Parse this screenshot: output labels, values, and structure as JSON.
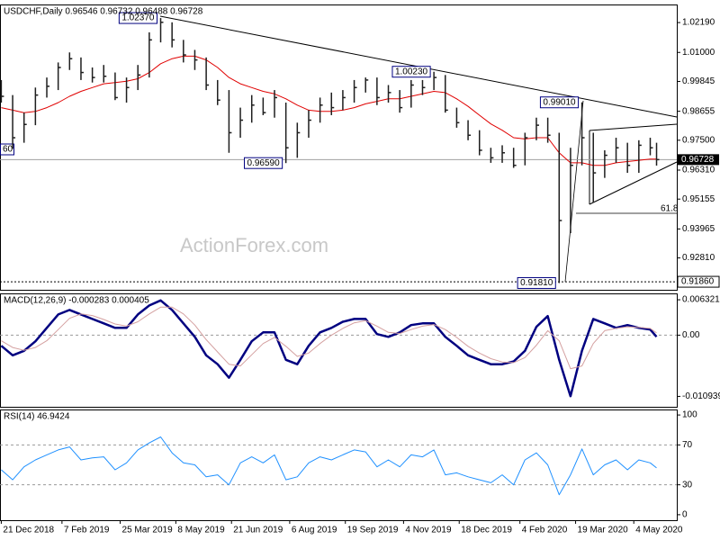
{
  "chart_data": [
    {
      "type": "ohlc",
      "title": "USDCHF,Daily  0.96546 0.96732 0.96488 0.96728",
      "watermark": "ActionForex.com",
      "edge_label": "60",
      "fib_label": "61.8",
      "color": "#1e1e1e",
      "xlim": [
        "2018-12-20",
        "2020-06-07"
      ],
      "x": [
        "2018-12-21",
        "2018-12-30",
        "2019-01-08",
        "2019-01-17",
        "2019-01-26",
        "2019-02-04",
        "2019-02-13",
        "2019-02-22",
        "2019-03-03",
        "2019-03-12",
        "2019-03-21",
        "2019-03-30",
        "2019-04-08",
        "2019-04-17",
        "2019-04-26",
        "2019-05-05",
        "2019-05-14",
        "2019-05-23",
        "2019-06-01",
        "2019-06-10",
        "2019-06-19",
        "2019-06-28",
        "2019-07-07",
        "2019-07-16",
        "2019-07-25",
        "2019-08-03",
        "2019-08-12",
        "2019-08-21",
        "2019-08-30",
        "2019-09-08",
        "2019-09-17",
        "2019-09-26",
        "2019-10-05",
        "2019-10-14",
        "2019-10-23",
        "2019-11-01",
        "2019-11-10",
        "2019-11-19",
        "2019-11-28",
        "2019-12-07",
        "2019-12-16",
        "2019-12-25",
        "2020-01-03",
        "2020-01-12",
        "2020-01-21",
        "2020-01-30",
        "2020-02-08",
        "2020-02-17",
        "2020-02-26",
        "2020-03-06",
        "2020-03-15",
        "2020-03-24",
        "2020-04-02",
        "2020-04-11",
        "2020-04-20",
        "2020-04-29",
        "2020-05-08",
        "2020-05-17",
        "2020-05-22"
      ],
      "high": [
        0.999,
        0.993,
        0.986,
        0.996,
        1.0,
        1.006,
        1.01,
        1.008,
        1.004,
        1.005,
        1.002,
        1.0,
        1.005,
        1.018,
        1.0237,
        1.022,
        1.015,
        1.011,
        1.008,
        0.999,
        0.995,
        0.988,
        0.993,
        0.992,
        0.995,
        0.99,
        0.982,
        0.987,
        0.992,
        0.994,
        0.995,
        0.999,
        1.0,
        1.0,
        0.997,
        0.995,
        0.999,
        0.999,
        1.0023,
        1.001,
        0.988,
        0.983,
        0.979,
        0.972,
        0.973,
        0.972,
        0.978,
        0.984,
        0.984,
        0.978,
        0.972,
        0.9901,
        0.978,
        0.971,
        0.976,
        0.974,
        0.975,
        0.976,
        0.974
      ],
      "low": [
        0.99,
        0.9716,
        0.974,
        0.981,
        0.992,
        0.995,
        1.003,
        0.999,
        0.998,
        0.998,
        0.991,
        0.99,
        0.995,
        1.0,
        1.014,
        1.012,
        1.006,
        1.003,
        0.995,
        0.989,
        0.97,
        0.976,
        0.982,
        0.985,
        0.984,
        0.9659,
        0.968,
        0.976,
        0.982,
        0.985,
        0.987,
        0.99,
        0.994,
        0.989,
        0.99,
        0.986,
        0.988,
        0.993,
        0.995,
        0.986,
        0.98,
        0.975,
        0.969,
        0.966,
        0.966,
        0.964,
        0.965,
        0.975,
        0.974,
        0.9181,
        0.938,
        0.965,
        0.9502,
        0.96,
        0.966,
        0.962,
        0.962,
        0.969,
        0.9649
      ],
      "close": [
        0.9925,
        0.976,
        0.9813,
        0.993,
        0.9965,
        1.004,
        1.0075,
        1.002,
        1.0,
        1.0005,
        0.992,
        0.996,
        1.001,
        1.015,
        1.022,
        1.015,
        1.009,
        1.007,
        0.997,
        0.991,
        0.978,
        0.983,
        0.989,
        0.986,
        0.992,
        0.972,
        0.978,
        0.983,
        0.989,
        0.988,
        0.992,
        0.996,
        0.999,
        0.992,
        0.994,
        0.988,
        0.997,
        0.996,
        1.0,
        0.987,
        0.982,
        0.977,
        0.971,
        0.968,
        0.97,
        0.965,
        0.976,
        0.981,
        0.977,
        0.943,
        0.965,
        0.976,
        0.962,
        0.969,
        0.972,
        0.965,
        0.973,
        0.972,
        0.96728
      ],
      "ma": {
        "color": "#e00000",
        "values": [
          0.988,
          0.987,
          0.986,
          0.9865,
          0.988,
          0.99,
          0.9925,
          0.9945,
          0.996,
          0.9975,
          0.998,
          0.9985,
          0.9995,
          1.002,
          1.0055,
          1.0075,
          1.0085,
          1.0085,
          1.007,
          1.004,
          1.0,
          0.9975,
          0.996,
          0.9945,
          0.9935,
          0.9915,
          0.989,
          0.987,
          0.9865,
          0.9865,
          0.987,
          0.988,
          0.9895,
          0.9905,
          0.9915,
          0.9915,
          0.9925,
          0.9935,
          0.9945,
          0.994,
          0.9915,
          0.9885,
          0.985,
          0.9815,
          0.979,
          0.976,
          0.9755,
          0.976,
          0.976,
          0.97,
          0.966,
          0.966,
          0.965,
          0.965,
          0.966,
          0.9665,
          0.967,
          0.9675,
          0.9675
        ]
      },
      "ylim": [
        0.9154,
        1.0291
      ],
      "yticks": [
        {
          "value": 1.0219,
          "label": "1.02190"
        },
        {
          "value": 1.01,
          "label": "1.01000"
        },
        0.99845,
        0.98655,
        {
          "value": 0.975,
          "label": "0.97500"
        },
        {
          "value": 0.9631,
          "label": "0.96310"
        },
        0.95155,
        0.93965,
        {
          "value": 0.9281,
          "label": "0.92810"
        }
      ],
      "annotations": [
        {
          "x": "2019-04-26",
          "value": 1.0237,
          "label": "1.02370"
        },
        {
          "x": "2019-08-03",
          "value": 0.9659,
          "label": "0.96590"
        },
        {
          "x": "2019-11-28",
          "value": 1.0023,
          "label": "1.00230"
        },
        {
          "x": "2020-03-24",
          "value": 0.9901,
          "label": "0.99010"
        },
        {
          "x": "2020-03-06",
          "value": 0.9181,
          "label": "0.91810"
        }
      ],
      "support_level": {
        "value": 0.9186,
        "label": "0.91860"
      },
      "last_price": {
        "value": 0.96728,
        "label": "0.96728"
      }
    },
    {
      "type": "line",
      "title": "MACD(12,26,9) -0.000283 0.000405",
      "ylim": [
        -0.0128,
        0.00746
      ],
      "yticks": [
        0.006321,
        {
          "value": 0,
          "label": "0.00"
        },
        -0.010939
      ],
      "levels": [
        0
      ],
      "series": [
        {
          "color": "#000080",
          "width": 2.5,
          "values": [
            -0.0019,
            -0.0036,
            -0.0028,
            -0.0011,
            0.0013,
            0.0037,
            0.0045,
            0.0037,
            0.0029,
            0.0021,
            0.0013,
            0.0013,
            0.0037,
            0.0053,
            0.0062,
            0.0045,
            0.0021,
            -0.0003,
            -0.0036,
            -0.0052,
            -0.0076,
            -0.0044,
            -0.0011,
            0.0005,
            0.0005,
            -0.0044,
            -0.0052,
            -0.0019,
            0.0005,
            0.0013,
            0.0024,
            0.0029,
            0.0029,
            0.0002,
            -0.0003,
            0.0005,
            0.0018,
            0.0021,
            0.0021,
            -0.0003,
            -0.0019,
            -0.0036,
            -0.0044,
            -0.0052,
            -0.0052,
            -0.0047,
            -0.0028,
            0.0015,
            0.0034,
            -0.0044,
            -0.0109,
            -0.0028,
            0.0029,
            0.0021,
            0.0013,
            0.0018,
            0.0013,
            0.001,
            -0.000283
          ]
        },
        {
          "color": "#d4a0a0",
          "width": 1,
          "values": [
            -0.001,
            -0.0022,
            -0.0027,
            -0.0022,
            -0.001,
            0.001,
            0.003,
            0.0038,
            0.0035,
            0.0028,
            0.002,
            0.0016,
            0.0024,
            0.0038,
            0.005,
            0.005,
            0.0038,
            0.0018,
            -0.0008,
            -0.003,
            -0.0052,
            -0.0055,
            -0.0035,
            -0.0015,
            -0.0004,
            -0.002,
            -0.0038,
            -0.0032,
            -0.0015,
            0.0,
            0.0012,
            0.0022,
            0.0026,
            0.0016,
            0.0005,
            0.0003,
            0.001,
            0.0016,
            0.0019,
            0.001,
            -0.0004,
            -0.002,
            -0.0032,
            -0.0042,
            -0.0048,
            -0.0049,
            -0.004,
            -0.0018,
            0.0008,
            -0.001,
            -0.006,
            -0.0055,
            -0.0015,
            0.0008,
            0.0012,
            0.0015,
            0.0014,
            0.0012,
            0.000405
          ]
        }
      ]
    },
    {
      "type": "line",
      "title": "RSI(14) 46.9424",
      "ylim": [
        -5.5,
        105.5
      ],
      "yticks": [
        100,
        70,
        30,
        0
      ],
      "levels": [
        70,
        30
      ],
      "series": [
        {
          "color": "#1e90ff",
          "width": 1,
          "values": [
            45,
            35,
            48,
            55,
            60,
            65,
            68,
            55,
            57,
            58,
            45,
            52,
            65,
            72,
            78,
            62,
            52,
            50,
            38,
            40,
            30,
            52,
            58,
            52,
            60,
            35,
            38,
            52,
            58,
            55,
            60,
            65,
            63,
            48,
            55,
            48,
            60,
            58,
            65,
            40,
            42,
            38,
            35,
            32,
            40,
            30,
            55,
            62,
            50,
            20,
            40,
            66,
            40,
            50,
            55,
            45,
            55,
            52,
            46.9424
          ]
        }
      ],
      "xticks": [
        {
          "value": "2018-12-21",
          "label": "21 Dec 2018"
        },
        {
          "value": "2019-02-07",
          "label": "7 Feb 2019"
        },
        {
          "value": "2019-03-25",
          "label": "25 Mar 2019"
        },
        {
          "value": "2019-05-08",
          "label": "8 May 2019"
        },
        {
          "value": "2019-06-21",
          "label": "21 Jun 2019"
        },
        {
          "value": "2019-08-06",
          "label": "6 Aug 2019"
        },
        {
          "value": "2019-09-19",
          "label": "19 Sep 2019"
        },
        {
          "value": "2019-11-04",
          "label": "4 Nov 2019"
        },
        {
          "value": "2019-12-18",
          "label": "18 Dec 2019"
        },
        {
          "value": "2020-02-04",
          "label": "4 Feb 2020"
        },
        {
          "value": "2020-03-19",
          "label": "19 Mar 2020"
        },
        {
          "value": "2020-05-04",
          "label": "4 May 2020"
        }
      ]
    }
  ]
}
